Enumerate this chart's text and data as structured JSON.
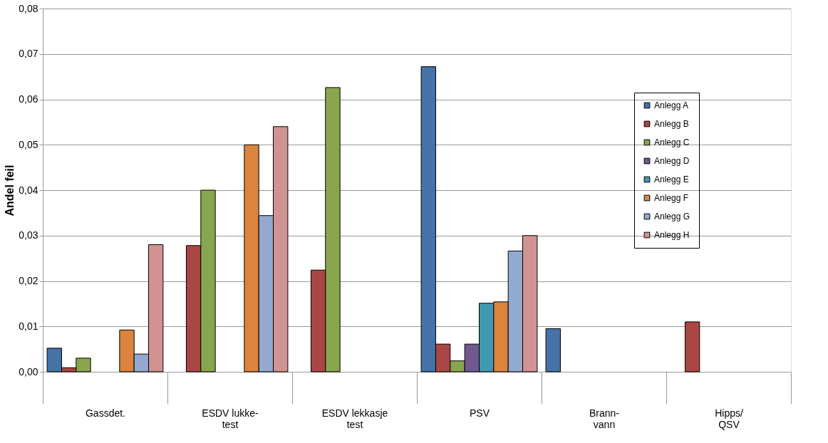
{
  "chart_data": {
    "type": "bar",
    "ylabel": "Andel feil",
    "categories": [
      "Gassdet.",
      "ESDV lukke-\ntest",
      "ESDV lekkasje\ntest",
      "PSV",
      "Brann-\nvann",
      "Hipps/\nQSV"
    ],
    "series": [
      {
        "name": "Anlegg A",
        "color": "#4572a7",
        "values": [
          0.0052,
          null,
          null,
          0.0672,
          0.0095,
          null
        ]
      },
      {
        "name": "Anlegg B",
        "color": "#aa4643",
        "values": [
          0.0009,
          0.0278,
          0.0224,
          0.0061,
          null,
          0.011
        ]
      },
      {
        "name": "Anlegg C",
        "color": "#89a54e",
        "values": [
          0.003,
          0.04,
          0.0626,
          0.0024,
          null,
          null
        ]
      },
      {
        "name": "Anlegg D",
        "color": "#71588f",
        "values": [
          null,
          null,
          null,
          0.0061,
          null,
          null
        ]
      },
      {
        "name": "Anlegg E",
        "color": "#4198af",
        "values": [
          null,
          null,
          null,
          0.0151,
          null,
          null
        ]
      },
      {
        "name": "Anlegg F",
        "color": "#db843d",
        "values": [
          0.0092,
          0.05,
          null,
          0.0154,
          null,
          null
        ]
      },
      {
        "name": "Anlegg G",
        "color": "#93a9cf",
        "values": [
          0.0039,
          0.0344,
          null,
          0.0266,
          null,
          null
        ]
      },
      {
        "name": "Anlegg H",
        "color": "#d19392",
        "values": [
          0.028,
          0.054,
          null,
          0.03,
          null,
          null
        ]
      }
    ],
    "ylim": [
      0,
      0.08
    ],
    "yticks": [
      {
        "value": 0,
        "label": "0,00"
      },
      {
        "value": 0.01,
        "label": "0,01"
      },
      {
        "value": 0.02,
        "label": "0,02"
      },
      {
        "value": 0.03,
        "label": "0,03"
      },
      {
        "value": 0.04,
        "label": "0,04"
      },
      {
        "value": 0.05,
        "label": "0,05"
      },
      {
        "value": 0.06,
        "label": "0,06"
      },
      {
        "value": 0.07,
        "label": "0,07"
      },
      {
        "value": 0.08,
        "label": "0,08"
      }
    ],
    "grid": "y",
    "legend": "right"
  }
}
